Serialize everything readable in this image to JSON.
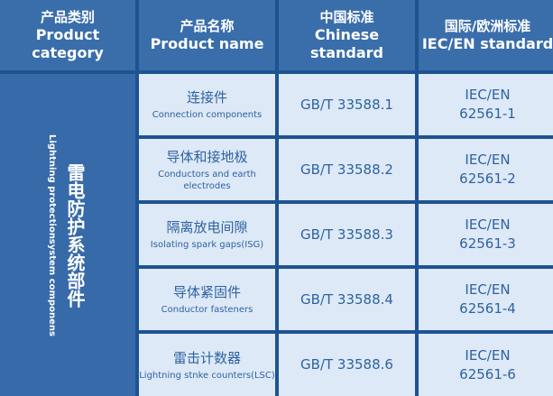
{
  "header": [
    {
      "zh": "产品类别",
      "en": "Product category"
    },
    {
      "zh": "产品名称",
      "en": "Product name"
    },
    {
      "zh": "中国标准",
      "en": "Chinese standard"
    },
    {
      "zh": "国际/欧洲标准",
      "en": "IEC/EN standard"
    }
  ],
  "category": {
    "zh": "雷电防护系统部件",
    "en": "Lightning protectionsystem componens"
  },
  "rows": [
    {
      "zh": "连接件",
      "en": "Connection components",
      "gb": "GB/T 33588.1",
      "iec1": "IEC/EN",
      "iec2": "62561-1"
    },
    {
      "zh": "导体和接地极",
      "en": "Conductors and earth electrodes",
      "gb": "GB/T 33588.2",
      "iec1": "IEC/EN",
      "iec2": "62561-2"
    },
    {
      "zh": "隔离放电间隙",
      "en": "Isolating spark gaps(ISG)",
      "gb": "GB/T 33588.3",
      "iec1": "IEC/EN",
      "iec2": "62561-3"
    },
    {
      "zh": "导体紧固件",
      "en": "Conductor fasteners",
      "gb": "GB/T 33588.4",
      "iec1": "IEC/EN",
      "iec2": "62561-4"
    },
    {
      "zh": "雷击计数器",
      "en": "Lightning stnke counters(LSC)",
      "gb": "GB/T 33588.6",
      "iec1": "IEC/EN",
      "iec2": "62561-6"
    }
  ]
}
